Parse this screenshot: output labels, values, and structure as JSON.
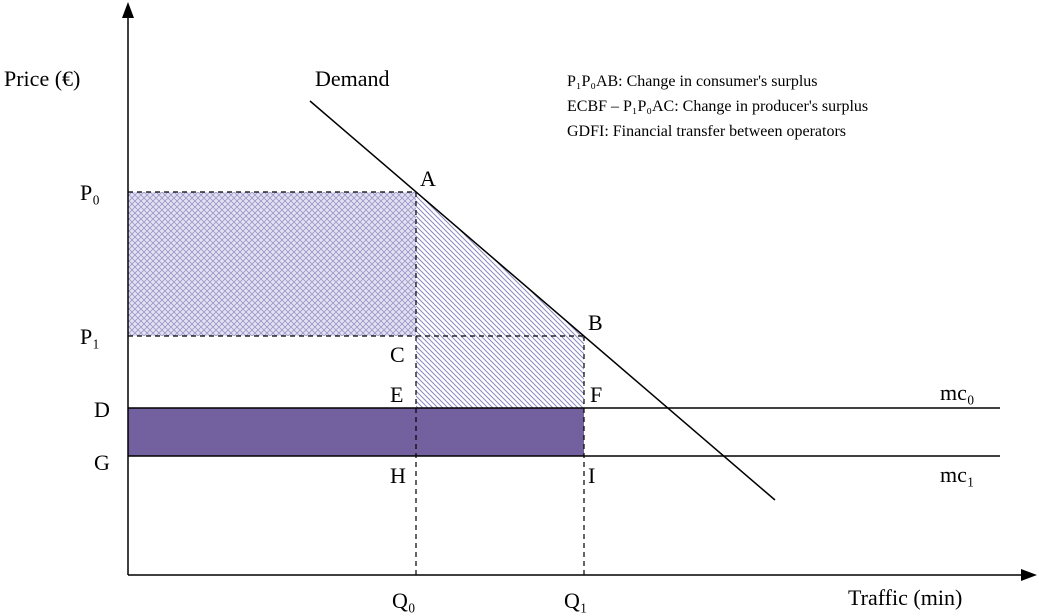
{
  "axes": {
    "y_label": "Price (€)",
    "x_label": "Traffic (min)"
  },
  "curves": {
    "demand": "Demand",
    "mc0": "mc₀",
    "mc1": "mc₁"
  },
  "legend": [
    "P₁P₀AB: Change in consumer's surplus",
    "ECBF – P₁P₀AC: Change in producer's surplus",
    "GDFI: Financial transfer between operators"
  ],
  "points": {
    "P0": "P₀",
    "P1": "P₁",
    "A": "A",
    "B": "B",
    "C": "C",
    "D": "D",
    "E": "E",
    "F": "F",
    "G": "G",
    "H": "H",
    "I": "I",
    "Q0": "Q₀",
    "Q1": "Q₁"
  }
}
